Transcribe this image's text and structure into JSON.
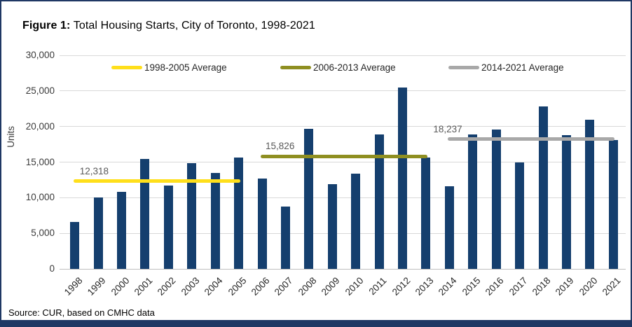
{
  "title": {
    "prefix": "Figure 1:",
    "rest": " Total Housing Starts, City of Toronto, 1998-2021"
  },
  "source_note": "Source: CUR, based on CMHC data",
  "colors": {
    "frame": "#1F3864",
    "bar": "#153F6E",
    "gridline": "#D9D9D9",
    "zero_line": "#BFBFBF"
  },
  "chart_data": {
    "type": "bar",
    "title": "Figure 1: Total Housing Starts, City of Toronto, 1998-2021",
    "xlabel": "",
    "ylabel": "Units",
    "ylim": [
      0,
      30000
    ],
    "ytick_interval": 5000,
    "ytick_labels": [
      "0",
      "5,000",
      "10,000",
      "15,000",
      "20,000",
      "25,000",
      "30,000"
    ],
    "grid": true,
    "legend_position": "top",
    "bar_color": "#153F6E",
    "categories": [
      "1998",
      "1999",
      "2000",
      "2001",
      "2002",
      "2003",
      "2004",
      "2005",
      "2006",
      "2007",
      "2008",
      "2009",
      "2010",
      "2011",
      "2012",
      "2013",
      "2014",
      "2015",
      "2016",
      "2017",
      "2018",
      "2019",
      "2020",
      "2021"
    ],
    "values": [
      6600,
      10000,
      10800,
      15400,
      11700,
      14900,
      13500,
      15600,
      12700,
      8800,
      19700,
      11900,
      13400,
      18900,
      25500,
      15600,
      11600,
      18900,
      19600,
      15000,
      22800,
      18800,
      21000,
      18100
    ],
    "average_lines": [
      {
        "label": "1998-2005 Average",
        "value": 12318,
        "value_label": "12,318",
        "color": "#FFDF1B",
        "start_index": 0,
        "end_index": 7
      },
      {
        "label": "2006-2013 Average",
        "value": 15826,
        "value_label": "15,826",
        "color": "#8F8F21",
        "start_index": 8,
        "end_index": 15
      },
      {
        "label": "2014-2021 Average",
        "value": 18237,
        "value_label": "18,237",
        "color": "#A8A8A8",
        "start_index": 16,
        "end_index": 23
      }
    ]
  }
}
